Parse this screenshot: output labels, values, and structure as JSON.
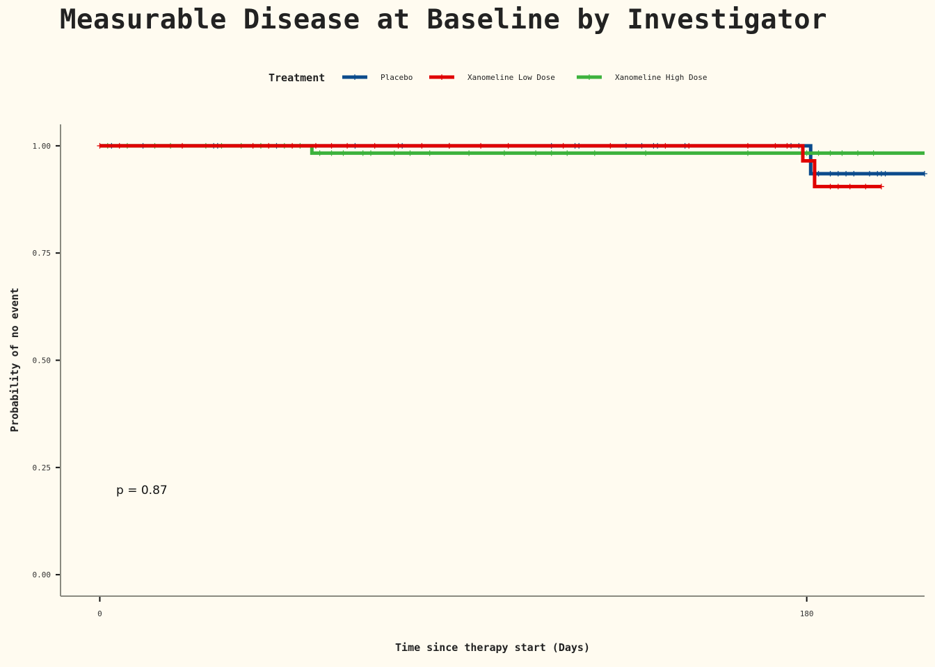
{
  "chart_data": {
    "type": "line",
    "subtype": "kaplan-meier",
    "title": "Measurable Disease at Baseline by Investigator",
    "xlabel": "Time since therapy start (Days)",
    "ylabel": "Probability of no event",
    "xlim": [
      -10,
      210
    ],
    "ylim": [
      -0.05,
      1.05
    ],
    "x_ticks": [
      0,
      180
    ],
    "x_tick_labels": [
      "0",
      "180"
    ],
    "y_ticks": [
      0.0,
      0.25,
      0.5,
      0.75,
      1.0
    ],
    "y_tick_labels": [
      "0.00",
      "0.25",
      "0.50",
      "0.75",
      "1.00"
    ],
    "legend": {
      "title": "Treatment",
      "position": "top"
    },
    "annotation": "p = 0.87",
    "grid": false,
    "series": [
      {
        "name": "Placebo",
        "color": "#0b4b8c",
        "steps": [
          [
            0,
            1.0
          ],
          [
            181,
            0.935
          ],
          [
            210,
            0.935
          ]
        ],
        "censors": [
          [
            3,
            1.0
          ],
          [
            11,
            1.0
          ],
          [
            29,
            1.0
          ],
          [
            30,
            1.0
          ],
          [
            45,
            1.0
          ],
          [
            65,
            1.0
          ],
          [
            77,
            1.0
          ],
          [
            89,
            1.0
          ],
          [
            115,
            1.0
          ],
          [
            121,
            1.0
          ],
          [
            122,
            1.0
          ],
          [
            134,
            1.0
          ],
          [
            138,
            1.0
          ],
          [
            141,
            1.0
          ],
          [
            142,
            1.0
          ],
          [
            149,
            1.0
          ],
          [
            176,
            1.0
          ],
          [
            178,
            1.0
          ],
          [
            183,
            0.935
          ],
          [
            186,
            0.935
          ],
          [
            188,
            0.935
          ],
          [
            190,
            0.935
          ],
          [
            192,
            0.935
          ],
          [
            196,
            0.935
          ],
          [
            198,
            0.935
          ],
          [
            199,
            0.935
          ],
          [
            200,
            0.935
          ],
          [
            210,
            0.935
          ]
        ]
      },
      {
        "name": "Xanomeline Low Dose",
        "color": "#e00000",
        "steps": [
          [
            0,
            1.0
          ],
          [
            179,
            0.965
          ],
          [
            182,
            0.905
          ],
          [
            199,
            0.905
          ]
        ],
        "censors": [
          [
            0,
            1.0
          ],
          [
            5,
            1.0
          ],
          [
            21,
            1.0
          ],
          [
            39,
            1.0
          ],
          [
            43,
            1.0
          ],
          [
            49,
            1.0
          ],
          [
            55,
            1.0
          ],
          [
            59,
            1.0
          ],
          [
            63,
            1.0
          ],
          [
            70,
            1.0
          ],
          [
            76,
            1.0
          ],
          [
            82,
            1.0
          ],
          [
            89,
            1.0
          ],
          [
            97,
            1.0
          ],
          [
            104,
            1.0
          ],
          [
            118,
            1.0
          ],
          [
            130,
            1.0
          ],
          [
            144,
            1.0
          ],
          [
            150,
            1.0
          ],
          [
            165,
            1.0
          ],
          [
            172,
            1.0
          ],
          [
            175,
            1.0
          ],
          [
            186,
            0.905
          ],
          [
            188,
            0.905
          ],
          [
            191,
            0.905
          ],
          [
            195,
            0.905
          ],
          [
            199,
            0.905
          ]
        ]
      },
      {
        "name": "Xanomeline High Dose",
        "color": "#3db23d",
        "steps": [
          [
            0,
            1.0
          ],
          [
            54,
            0.983
          ],
          [
            210,
            0.983
          ]
        ],
        "censors": [
          [
            2,
            1.0
          ],
          [
            7,
            1.0
          ],
          [
            14,
            1.0
          ],
          [
            18,
            1.0
          ],
          [
            27,
            1.0
          ],
          [
            31,
            1.0
          ],
          [
            36,
            1.0
          ],
          [
            41,
            1.0
          ],
          [
            47,
            1.0
          ],
          [
            51,
            1.0
          ],
          [
            56,
            0.983
          ],
          [
            59,
            0.983
          ],
          [
            62,
            0.983
          ],
          [
            67,
            0.983
          ],
          [
            69,
            0.983
          ],
          [
            75,
            0.983
          ],
          [
            79,
            0.983
          ],
          [
            84,
            0.983
          ],
          [
            94,
            0.983
          ],
          [
            103,
            0.983
          ],
          [
            111,
            0.983
          ],
          [
            115,
            0.983
          ],
          [
            119,
            0.983
          ],
          [
            126,
            0.983
          ],
          [
            139,
            0.983
          ],
          [
            165,
            0.983
          ],
          [
            180,
            0.983
          ],
          [
            183,
            0.983
          ],
          [
            186,
            0.983
          ],
          [
            189,
            0.983
          ],
          [
            193,
            0.983
          ],
          [
            197,
            0.983
          ]
        ]
      }
    ]
  }
}
